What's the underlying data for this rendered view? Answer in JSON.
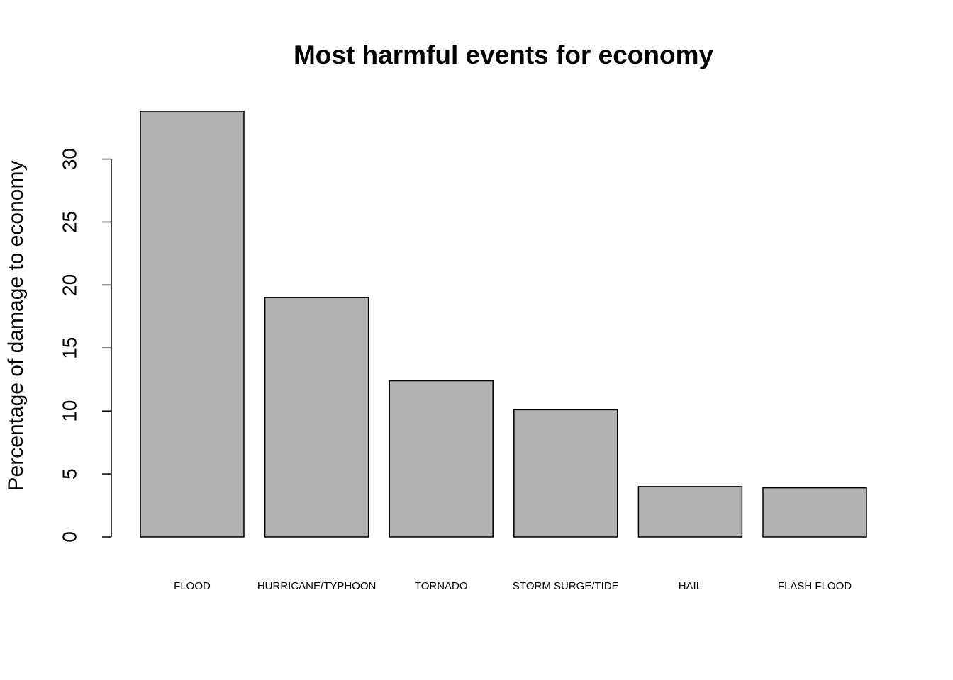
{
  "chart_data": {
    "type": "bar",
    "title": "Most harmful events for economy",
    "y_label": "Percentage of damage to economy",
    "categories": [
      "FLOOD",
      "HURRICANE/TYPHOON",
      "TORNADO",
      "STORM SURGE/TIDE",
      "HAIL",
      "FLASH FLOOD"
    ],
    "values": [
      33.8,
      19.0,
      12.4,
      10.1,
      4.0,
      3.9
    ],
    "color": "#b2b2b2",
    "ylim": [
      0,
      33.8
    ],
    "yticks": [
      0,
      5,
      10,
      15,
      20,
      25,
      30
    ],
    "grid": false
  }
}
